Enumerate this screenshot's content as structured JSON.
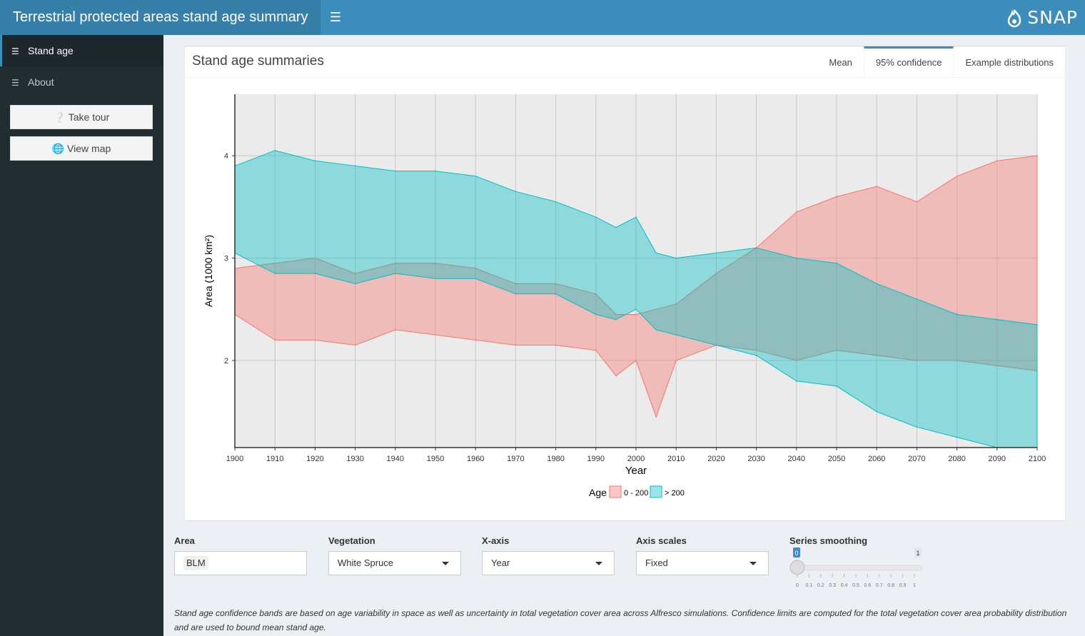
{
  "header": {
    "title": "Terrestrial protected areas stand age summary",
    "brand": "SNAP"
  },
  "sidebar": {
    "items": [
      {
        "label": "Stand age"
      },
      {
        "label": "About"
      }
    ],
    "buttons": [
      {
        "label": "Take tour"
      },
      {
        "label": "View map"
      }
    ]
  },
  "panel": {
    "title": "Stand age summaries",
    "tabs": [
      {
        "label": "Mean"
      },
      {
        "label": "95% confidence"
      },
      {
        "label": "Example distributions"
      }
    ],
    "active_tab": "95% confidence"
  },
  "controls": {
    "area": {
      "label": "Area",
      "value": "BLM"
    },
    "vegetation": {
      "label": "Vegetation",
      "value": "White Spruce"
    },
    "xaxis": {
      "label": "X-axis",
      "value": "Year"
    },
    "axis_scales": {
      "label": "Axis scales",
      "value": "Fixed"
    },
    "smoothing": {
      "label": "Series smoothing",
      "value": "0",
      "max": "1",
      "ticks": [
        "0",
        "0.1",
        "0.2",
        "0.3",
        "0.4",
        "0.5",
        "0.6",
        "0.7",
        "0.8",
        "0.9",
        "1"
      ]
    }
  },
  "note": "Stand age confidence bands are based on age variability in space as well as uncertainty in total vegetation cover area across Alfresco simulations. Confidence limits are computed for the total vegetation cover area probability distribution and are used to bound mean stand age.",
  "colors": {
    "header": "#3c8dbc",
    "sidebar": "#222d32",
    "young": "#f8766d",
    "old": "#00bfc4"
  },
  "chart_data": {
    "type": "area",
    "xlabel": "Year",
    "ylabel": "Area (1000 km²)",
    "xlim": [
      1900,
      2100
    ],
    "ylim": [
      1.15,
      4.6
    ],
    "xticks": [
      1900,
      1910,
      1920,
      1930,
      1940,
      1950,
      1960,
      1970,
      1980,
      1990,
      2000,
      2010,
      2020,
      2030,
      2040,
      2050,
      2060,
      2070,
      2080,
      2090,
      2100
    ],
    "yticks": [
      2,
      3,
      4
    ],
    "legend_title": "Age",
    "legend_position": "bottom",
    "grid": true,
    "series": [
      {
        "name": "0 - 200",
        "color": "#f8766d",
        "points": [
          {
            "x": 1900,
            "lower": 2.45,
            "upper": 2.9
          },
          {
            "x": 1910,
            "lower": 2.2,
            "upper": 2.95
          },
          {
            "x": 1920,
            "lower": 2.2,
            "upper": 3.0
          },
          {
            "x": 1930,
            "lower": 2.15,
            "upper": 2.85
          },
          {
            "x": 1940,
            "lower": 2.3,
            "upper": 2.95
          },
          {
            "x": 1950,
            "lower": 2.25,
            "upper": 2.95
          },
          {
            "x": 1960,
            "lower": 2.2,
            "upper": 2.9
          },
          {
            "x": 1970,
            "lower": 2.15,
            "upper": 2.75
          },
          {
            "x": 1980,
            "lower": 2.15,
            "upper": 2.75
          },
          {
            "x": 1990,
            "lower": 2.1,
            "upper": 2.65
          },
          {
            "x": 1995,
            "lower": 1.85,
            "upper": 2.45
          },
          {
            "x": 2000,
            "lower": 2.0,
            "upper": 2.45
          },
          {
            "x": 2005,
            "lower": 1.45,
            "upper": 2.5
          },
          {
            "x": 2010,
            "lower": 2.0,
            "upper": 2.55
          },
          {
            "x": 2020,
            "lower": 2.15,
            "upper": 2.85
          },
          {
            "x": 2030,
            "lower": 2.1,
            "upper": 3.1
          },
          {
            "x": 2040,
            "lower": 2.0,
            "upper": 3.45
          },
          {
            "x": 2050,
            "lower": 2.1,
            "upper": 3.6
          },
          {
            "x": 2060,
            "lower": 2.05,
            "upper": 3.7
          },
          {
            "x": 2070,
            "lower": 2.0,
            "upper": 3.55
          },
          {
            "x": 2080,
            "lower": 2.0,
            "upper": 3.8
          },
          {
            "x": 2090,
            "lower": 1.95,
            "upper": 3.95
          },
          {
            "x": 2100,
            "lower": 1.9,
            "upper": 4.0
          }
        ]
      },
      {
        "name": "> 200",
        "color": "#00bfc4",
        "points": [
          {
            "x": 1900,
            "lower": 3.05,
            "upper": 3.9
          },
          {
            "x": 1910,
            "lower": 2.85,
            "upper": 4.05
          },
          {
            "x": 1920,
            "lower": 2.85,
            "upper": 3.95
          },
          {
            "x": 1930,
            "lower": 2.75,
            "upper": 3.9
          },
          {
            "x": 1940,
            "lower": 2.85,
            "upper": 3.85
          },
          {
            "x": 1950,
            "lower": 2.8,
            "upper": 3.85
          },
          {
            "x": 1960,
            "lower": 2.8,
            "upper": 3.8
          },
          {
            "x": 1970,
            "lower": 2.65,
            "upper": 3.65
          },
          {
            "x": 1980,
            "lower": 2.65,
            "upper": 3.55
          },
          {
            "x": 1990,
            "lower": 2.45,
            "upper": 3.4
          },
          {
            "x": 1995,
            "lower": 2.4,
            "upper": 3.3
          },
          {
            "x": 2000,
            "lower": 2.5,
            "upper": 3.4
          },
          {
            "x": 2005,
            "lower": 2.3,
            "upper": 3.05
          },
          {
            "x": 2010,
            "lower": 2.25,
            "upper": 3.0
          },
          {
            "x": 2020,
            "lower": 2.15,
            "upper": 3.05
          },
          {
            "x": 2030,
            "lower": 2.05,
            "upper": 3.1
          },
          {
            "x": 2040,
            "lower": 1.8,
            "upper": 3.0
          },
          {
            "x": 2050,
            "lower": 1.75,
            "upper": 2.95
          },
          {
            "x": 2060,
            "lower": 1.5,
            "upper": 2.75
          },
          {
            "x": 2070,
            "lower": 1.35,
            "upper": 2.6
          },
          {
            "x": 2080,
            "lower": 1.25,
            "upper": 2.45
          },
          {
            "x": 2090,
            "lower": 1.15,
            "upper": 2.4
          },
          {
            "x": 2100,
            "lower": 1.15,
            "upper": 2.35
          }
        ]
      }
    ]
  }
}
